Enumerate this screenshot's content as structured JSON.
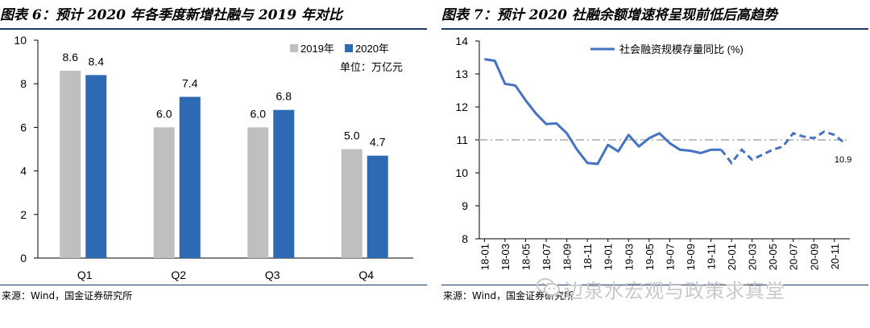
{
  "charts": [
    {
      "id": "left",
      "title": "图表 6：预计 2020 年各季度新增社融与 2019 年对比",
      "source": "来源：Wind，国金证券研究所",
      "unit_note": "单位：万亿元"
    },
    {
      "id": "right",
      "title": "图表 7：预计 2020 社融余额增速将呈现前低后高趋势",
      "source": "来源：Wind，国金证券研究所"
    }
  ],
  "watermark": "边泉水宏观与政策求真堂",
  "chart_data": [
    {
      "type": "bar",
      "title": "图表 6：预计 2020 年各季度新增社融与 2019 年对比",
      "categories": [
        "Q1",
        "Q2",
        "Q3",
        "Q4"
      ],
      "series": [
        {
          "name": "2019年",
          "values": [
            8.6,
            6.0,
            6.0,
            5.0
          ],
          "color": "#bfbfbf"
        },
        {
          "name": "2020年",
          "values": [
            8.4,
            7.4,
            6.8,
            4.7
          ],
          "color": "#2e6ab3"
        }
      ],
      "data_labels": [
        "8.6",
        "8.4",
        "6.0",
        "7.4",
        "6.0",
        "6.8",
        "5.0",
        "4.7"
      ],
      "ylim": [
        0,
        10
      ],
      "yticks": [
        "0",
        "2",
        "4",
        "6",
        "8",
        "10"
      ],
      "legend_position": "top-right",
      "grid": false
    },
    {
      "type": "line",
      "title": "图表 7：预计 2020 社融余额增速将呈现前低后高趋势",
      "series_name": "社会融资规模存量同比 (%)",
      "color": "#4472c4",
      "ylim": [
        8,
        14
      ],
      "yticks": [
        "8",
        "9",
        "10",
        "11",
        "12",
        "13",
        "14"
      ],
      "xticks": [
        "18-01",
        "18-03",
        "18-05",
        "18-07",
        "18-09",
        "18-11",
        "19-01",
        "19-03",
        "19-05",
        "19-07",
        "19-09",
        "19-11",
        "20-01",
        "20-03",
        "20-05",
        "20-07",
        "20-09",
        "20-11"
      ],
      "x": [
        "18-01",
        "18-02",
        "18-03",
        "18-04",
        "18-05",
        "18-06",
        "18-07",
        "18-08",
        "18-09",
        "18-10",
        "18-11",
        "18-12",
        "19-01",
        "19-02",
        "19-03",
        "19-04",
        "19-05",
        "19-06",
        "19-07",
        "19-08",
        "19-09",
        "19-10",
        "19-11",
        "19-12",
        "20-01",
        "20-02",
        "20-03",
        "20-04",
        "20-05",
        "20-06",
        "20-07",
        "20-08",
        "20-09",
        "20-10",
        "20-11",
        "20-12"
      ],
      "values": [
        13.45,
        13.4,
        12.7,
        12.65,
        12.2,
        11.8,
        11.48,
        11.5,
        11.2,
        10.7,
        10.3,
        10.27,
        10.85,
        10.65,
        11.15,
        10.8,
        11.05,
        11.2,
        10.9,
        10.7,
        10.67,
        10.6,
        10.7,
        10.7,
        10.3,
        10.7,
        10.4,
        10.55,
        10.7,
        10.8,
        11.2,
        11.1,
        11.05,
        11.25,
        11.15,
        10.9
      ],
      "actual_through": "19-12",
      "forecast_from": "20-01",
      "reference_line": 11,
      "end_label": "10.9",
      "legend_position": "top-center",
      "grid": false
    }
  ]
}
